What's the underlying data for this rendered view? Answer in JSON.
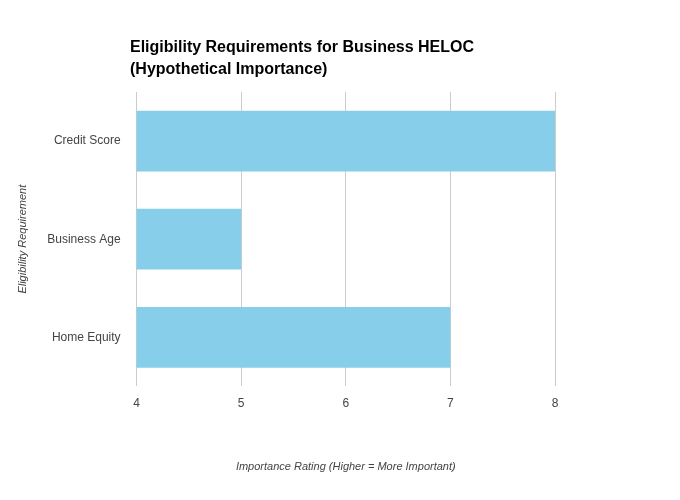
{
  "chart_data": {
    "type": "bar",
    "orientation": "horizontal",
    "title": [
      "Eligibility Requirements for Business HELOC",
      "(Hypothetical Importance)"
    ],
    "x_label": "Importance Rating (Higher = More Important)",
    "y_label": "Eligibility Requirement",
    "categories": [
      "Credit Score",
      "Business Age",
      "Home Equity"
    ],
    "values": [
      8,
      5,
      7
    ],
    "color": "#87ceeb",
    "xlim": [
      4,
      8
    ],
    "xticks": [
      4,
      5,
      6,
      7,
      8
    ],
    "grid": true
  }
}
